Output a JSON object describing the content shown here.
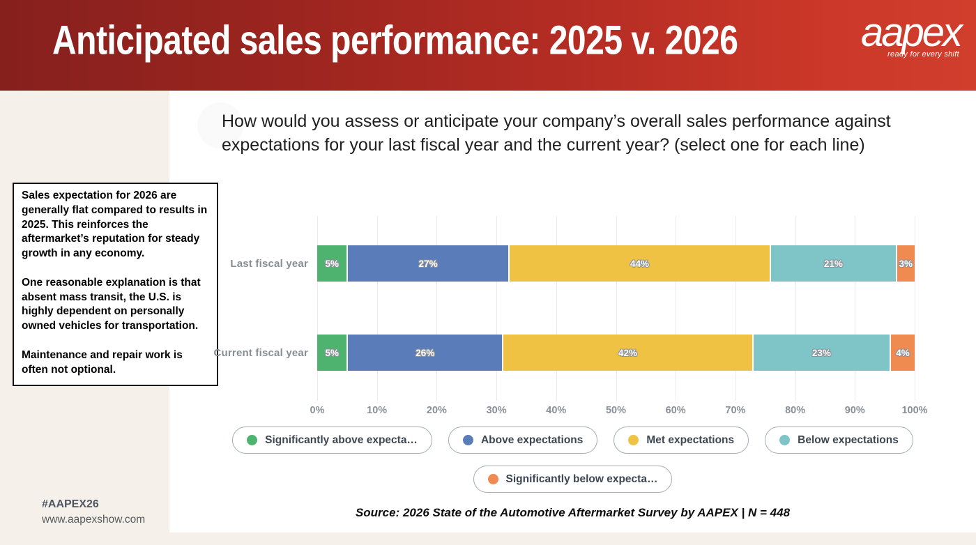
{
  "header": {
    "title": "Anticipated sales performance: 2025 v. 2026",
    "logo": {
      "text": "aapex",
      "tagline": "ready for every shift"
    },
    "bg_colors": [
      "#86201d",
      "#d23e2c"
    ]
  },
  "question": {
    "text": "How would you assess or anticipate your company’s overall sales performance against expectations for your last fiscal year and the current year? (select one for each line)"
  },
  "commentary": {
    "paragraphs": [
      "Sales expectation for 2026 are generally flat compared to results in 2025. This reinforces the aftermarket’s reputation for steady growth in any economy.",
      "One reasonable explanation is that absent mass transit, the U.S. is highly dependent on personally owned vehicles for transportation.",
      "Maintenance and repair work is often not optional."
    ]
  },
  "chart_data": {
    "type": "bar",
    "orientation": "horizontal",
    "stacked": true,
    "categories": [
      "Last fiscal year",
      "Current fiscal year"
    ],
    "series": [
      {
        "name": "Significantly above expectations",
        "color": "#4db36e",
        "values": [
          5,
          5
        ]
      },
      {
        "name": "Above expectations",
        "color": "#5a7cb8",
        "values": [
          27,
          26
        ]
      },
      {
        "name": "Met expectations",
        "color": "#efc243",
        "values": [
          44,
          42
        ]
      },
      {
        "name": "Below expectations",
        "color": "#7fc4c6",
        "values": [
          21,
          23
        ]
      },
      {
        "name": "Significantly below expectations",
        "color": "#ef8a51",
        "values": [
          3,
          4
        ]
      }
    ],
    "legend_labels": [
      "Significantly above expecta…",
      "Above expectations",
      "Met expectations",
      "Below expectations",
      "Significantly below expecta…"
    ],
    "x_ticks": [
      "0%",
      "10%",
      "20%",
      "30%",
      "40%",
      "50%",
      "60%",
      "70%",
      "80%",
      "90%",
      "100%"
    ],
    "xlim": [
      0,
      100
    ],
    "grid": true,
    "legend_position": "bottom",
    "value_suffix": "%"
  },
  "footer": {
    "source": "Source: 2026 State of the Automotive Aftermarket Survey by AAPEX  | N = 448",
    "hashtag": "#AAPEX26",
    "website": "www.aapexshow.com"
  }
}
